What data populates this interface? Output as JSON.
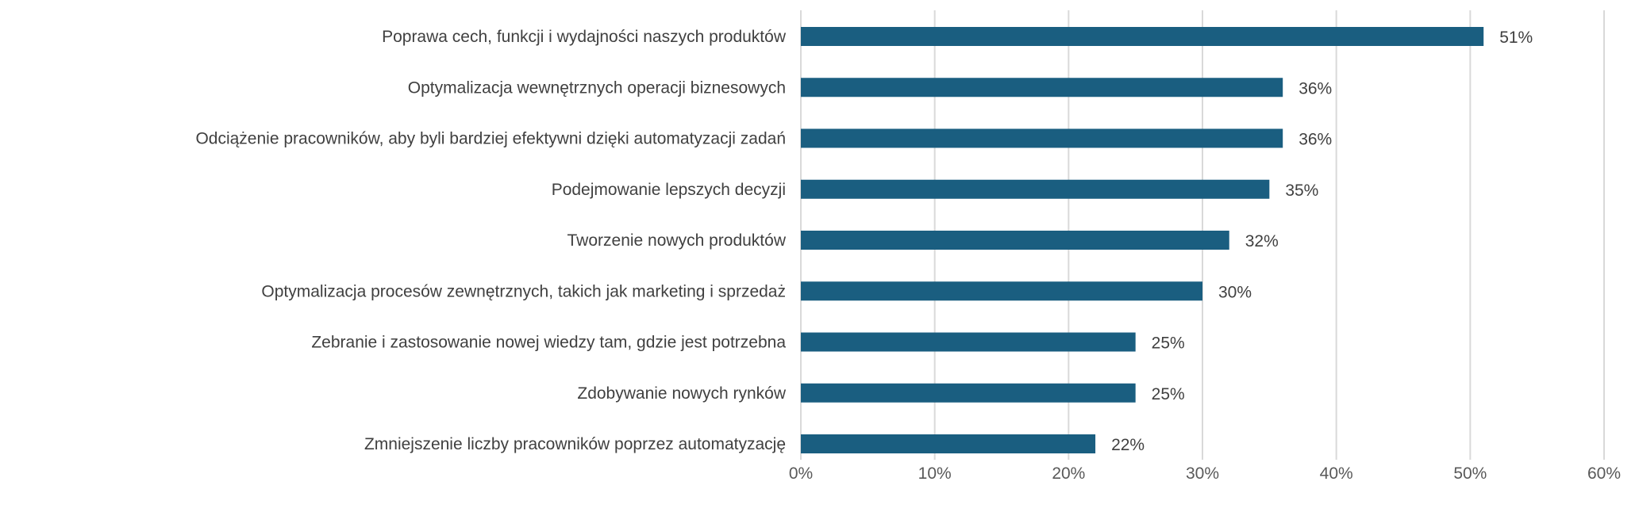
{
  "chart_data": {
    "type": "bar",
    "orientation": "horizontal",
    "title": "",
    "xlabel": "",
    "ylabel": "",
    "categories": [
      "Poprawa cech, funkcji i wydajności naszych produktów",
      "Optymalizacja wewnętrznych operacji biznesowych",
      "Odciążenie pracowników, aby byli bardziej efektywni dzięki automatyzacji zadań",
      "Podejmowanie lepszych decyzji",
      "Tworzenie nowych produktów",
      "Optymalizacja procesów zewnętrznych, takich jak marketing i sprzedaż",
      "Zebranie i zastosowanie nowej wiedzy tam, gdzie jest potrzebna",
      "Zdobywanie nowych rynków",
      "Zmniejszenie liczby pracowników poprzez automatyzację"
    ],
    "values": [
      51,
      36,
      36,
      35,
      32,
      30,
      25,
      25,
      22
    ],
    "value_labels": [
      "51%",
      "36%",
      "36%",
      "35%",
      "32%",
      "30%",
      "25%",
      "25%",
      "22%"
    ],
    "xlim": [
      0,
      60
    ],
    "xticks": [
      0,
      10,
      20,
      30,
      40,
      50,
      60
    ],
    "xtick_labels": [
      "0%",
      "10%",
      "20%",
      "30%",
      "40%",
      "50%",
      "60%"
    ],
    "grid": true,
    "bar_color": "#1a5e80",
    "grid_color": "#d9d9d9"
  }
}
